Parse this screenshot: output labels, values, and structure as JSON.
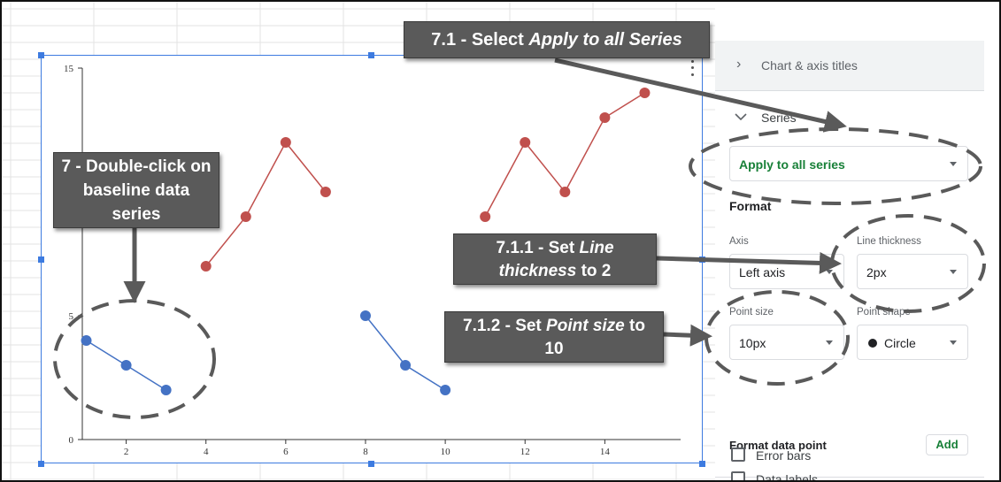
{
  "chart": {
    "y_ticks": [
      "0",
      "5",
      "15"
    ],
    "x_ticks": [
      "2",
      "4",
      "6",
      "8",
      "10",
      "12",
      "14"
    ]
  },
  "chart_data": {
    "type": "line",
    "x_ticks": [
      2,
      4,
      6,
      8,
      10,
      12,
      14
    ],
    "y_ticks": [
      0,
      5,
      15
    ],
    "xlim": [
      0.9,
      15.9
    ],
    "ylim": [
      0,
      15
    ],
    "series": [
      {
        "color": "#4472c4",
        "x": [
          1,
          2,
          3
        ],
        "y": [
          4,
          3,
          2
        ]
      },
      {
        "color": "#4472c4",
        "x": [
          8,
          9,
          10
        ],
        "y": [
          5,
          3,
          2
        ]
      },
      {
        "color": "#c0504d",
        "x": [
          4,
          5,
          6,
          7
        ],
        "y": [
          7,
          9,
          12,
          10
        ]
      },
      {
        "color": "#c0504d",
        "x": [
          11,
          12,
          13,
          14,
          15
        ],
        "y": [
          9,
          12,
          10,
          13,
          14
        ]
      }
    ]
  },
  "panel": {
    "chart_axis_titles": "Chart & axis titles",
    "series_heading": "Series",
    "series_dropdown": "Apply to all series",
    "format_heading": "Format",
    "axis_label": "Axis",
    "axis_value": "Left axis",
    "line_thickness_label": "Line thickness",
    "line_thickness_value": "2px",
    "point_size_label": "Point size",
    "point_size_value": "10px",
    "point_shape_label": "Point shape",
    "point_shape_value": "Circle",
    "format_data_point": "Format data point",
    "add_button": "Add",
    "error_bars": "Error bars",
    "data_labels": "Data labels"
  },
  "annotations": {
    "step_7_1_a": "7.1 - Select ",
    "step_7_1_b": "Apply to all Series",
    "step_7_line1": "7 - Double-click on",
    "step_7_line2": "baseline data",
    "step_7_line3": "series",
    "step_7_1_1_a": "7.1.1 - Set ",
    "step_7_1_1_b": "Line",
    "step_7_1_1_c": "thickness",
    "step_7_1_1_d": " to 2",
    "step_7_1_2_a": "7.1.2 - Set ",
    "step_7_1_2_b": "Point size",
    "step_7_1_2_c": " to",
    "step_7_1_2_d": "10"
  },
  "colors": {
    "series_blue": "#4472c4",
    "series_red": "#c0504d",
    "selection_blue": "#3d7be0",
    "panel_green": "#188038",
    "callout_gray": "#5a5a5a"
  }
}
